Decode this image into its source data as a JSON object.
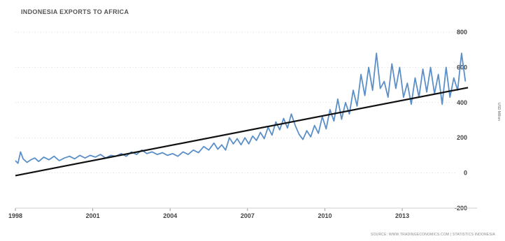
{
  "chart_data": {
    "type": "line",
    "title": "INDONESIA EXPORTS TO AFRICA",
    "ylabel": "USD Million",
    "source": "SOURCE: WWW.TRADINGECONOMICS.COM | STATISTICS INDONESIA",
    "xlim": [
      1998,
      2015.9
    ],
    "ylim": [
      -200,
      800
    ],
    "x_ticks": [
      1998,
      2001,
      2004,
      2007,
      2010,
      2013
    ],
    "y_ticks": [
      -200,
      0,
      200,
      400,
      600,
      800
    ],
    "y_axis_side": "right",
    "grid": "horizontal dotted",
    "series": [
      {
        "name": "",
        "color": "#5b8fc7",
        "points": [
          [
            1998.0,
            70
          ],
          [
            1998.1,
            55
          ],
          [
            1998.2,
            120
          ],
          [
            1998.3,
            80
          ],
          [
            1998.45,
            60
          ],
          [
            1998.6,
            75
          ],
          [
            1998.75,
            85
          ],
          [
            1998.9,
            65
          ],
          [
            1999.1,
            90
          ],
          [
            1999.3,
            75
          ],
          [
            1999.5,
            95
          ],
          [
            1999.7,
            70
          ],
          [
            1999.9,
            85
          ],
          [
            2000.1,
            95
          ],
          [
            2000.3,
            80
          ],
          [
            2000.5,
            100
          ],
          [
            2000.7,
            85
          ],
          [
            2000.9,
            100
          ],
          [
            2001.1,
            90
          ],
          [
            2001.3,
            105
          ],
          [
            2001.5,
            85
          ],
          [
            2001.7,
            100
          ],
          [
            2001.9,
            95
          ],
          [
            2002.1,
            110
          ],
          [
            2002.3,
            95
          ],
          [
            2002.5,
            120
          ],
          [
            2002.7,
            105
          ],
          [
            2002.9,
            130
          ],
          [
            2003.1,
            110
          ],
          [
            2003.3,
            120
          ],
          [
            2003.5,
            105
          ],
          [
            2003.7,
            115
          ],
          [
            2003.9,
            100
          ],
          [
            2004.1,
            110
          ],
          [
            2004.3,
            95
          ],
          [
            2004.5,
            120
          ],
          [
            2004.7,
            105
          ],
          [
            2004.9,
            130
          ],
          [
            2005.1,
            115
          ],
          [
            2005.3,
            150
          ],
          [
            2005.5,
            130
          ],
          [
            2005.7,
            170
          ],
          [
            2005.85,
            135
          ],
          [
            2006.0,
            160
          ],
          [
            2006.15,
            130
          ],
          [
            2006.3,
            200
          ],
          [
            2006.45,
            165
          ],
          [
            2006.6,
            195
          ],
          [
            2006.75,
            160
          ],
          [
            2006.9,
            200
          ],
          [
            2007.05,
            165
          ],
          [
            2007.2,
            210
          ],
          [
            2007.35,
            185
          ],
          [
            2007.5,
            230
          ],
          [
            2007.65,
            195
          ],
          [
            2007.8,
            260
          ],
          [
            2007.95,
            215
          ],
          [
            2008.1,
            290
          ],
          [
            2008.25,
            245
          ],
          [
            2008.4,
            310
          ],
          [
            2008.55,
            255
          ],
          [
            2008.7,
            335
          ],
          [
            2008.85,
            270
          ],
          [
            2009.0,
            220
          ],
          [
            2009.15,
            190
          ],
          [
            2009.3,
            240
          ],
          [
            2009.45,
            205
          ],
          [
            2009.6,
            270
          ],
          [
            2009.75,
            225
          ],
          [
            2009.9,
            320
          ],
          [
            2010.05,
            250
          ],
          [
            2010.2,
            360
          ],
          [
            2010.35,
            295
          ],
          [
            2010.5,
            420
          ],
          [
            2010.65,
            305
          ],
          [
            2010.8,
            400
          ],
          [
            2010.95,
            335
          ],
          [
            2011.1,
            470
          ],
          [
            2011.25,
            380
          ],
          [
            2011.4,
            560
          ],
          [
            2011.55,
            440
          ],
          [
            2011.7,
            600
          ],
          [
            2011.85,
            470
          ],
          [
            2012.0,
            680
          ],
          [
            2012.15,
            480
          ],
          [
            2012.3,
            520
          ],
          [
            2012.45,
            430
          ],
          [
            2012.6,
            620
          ],
          [
            2012.75,
            480
          ],
          [
            2012.9,
            600
          ],
          [
            2013.05,
            430
          ],
          [
            2013.2,
            510
          ],
          [
            2013.35,
            390
          ],
          [
            2013.5,
            540
          ],
          [
            2013.65,
            430
          ],
          [
            2013.8,
            590
          ],
          [
            2013.95,
            460
          ],
          [
            2014.1,
            600
          ],
          [
            2014.25,
            450
          ],
          [
            2014.4,
            560
          ],
          [
            2014.55,
            390
          ],
          [
            2014.7,
            600
          ],
          [
            2014.85,
            430
          ],
          [
            2015.0,
            540
          ],
          [
            2015.15,
            470
          ],
          [
            2015.3,
            680
          ],
          [
            2015.45,
            520
          ]
        ]
      },
      {
        "name": "",
        "color": "#111111",
        "points": [
          [
            1998.0,
            -15
          ],
          [
            2015.55,
            485
          ]
        ]
      }
    ]
  }
}
